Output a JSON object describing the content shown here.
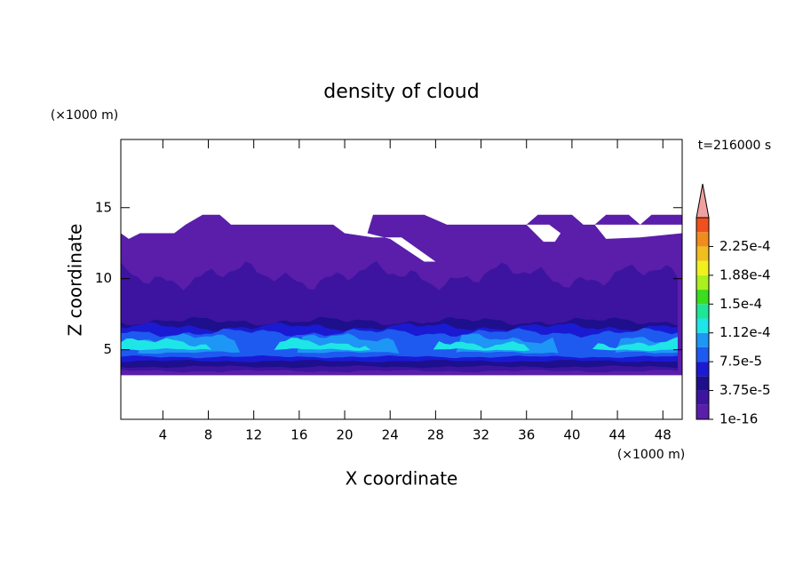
{
  "chart_data": {
    "type": "contour",
    "title": "density of cloud",
    "x_label": "X coordinate",
    "y_label": "Z coordinate",
    "x_unit": "(×1000 m)",
    "y_unit": "(×1000 m)",
    "annotation": "t=216000 s",
    "xlim": [
      0.3,
      49.7
    ],
    "ylim": [
      0.1,
      19.8
    ],
    "xticks": [
      4,
      8,
      12,
      16,
      20,
      24,
      28,
      32,
      36,
      40,
      44,
      48
    ],
    "yticks": [
      5,
      10,
      15
    ],
    "levels": [
      1e-16,
      1.875e-05,
      3.75e-05,
      5.625e-05,
      7.5e-05,
      9.375e-05,
      0.0001125,
      0.00013125,
      0.00015,
      0.00016875,
      0.0001875,
      0.00020625,
      0.000225,
      0.00024375,
      0.0002625
    ],
    "colors": [
      "#5a1eaa",
      "#3c14a0",
      "#1e0f8c",
      "#1a1ad2",
      "#1e5af0",
      "#1e96f5",
      "#1ee6e6",
      "#1ee696",
      "#3cdc1e",
      "#aaf01e",
      "#f0f01e",
      "#f0be1e",
      "#f08c1e",
      "#f0501e"
    ],
    "extend_color": "#f0a0a0",
    "colorbar_ticks": [
      {
        "value": 1e-16,
        "label": "1e-16"
      },
      {
        "value": 3.75e-05,
        "label": "3.75e-5"
      },
      {
        "value": 7.5e-05,
        "label": "7.5e-5"
      },
      {
        "value": 0.0001125,
        "label": "1.12e-4"
      },
      {
        "value": 0.00015,
        "label": "1.5e-4"
      },
      {
        "value": 0.0001875,
        "label": "1.88e-4"
      },
      {
        "value": 0.000225,
        "label": "2.25e-4"
      }
    ]
  }
}
